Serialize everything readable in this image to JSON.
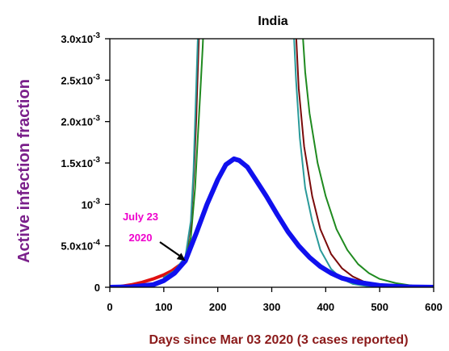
{
  "chart_data": {
    "type": "line",
    "title": "India",
    "xlabel": "Days since Mar 03 2020 (3 cases reported)",
    "ylabel": "Active infection fraction",
    "xlim": [
      0,
      600
    ],
    "ylim": [
      0,
      0.003
    ],
    "x_ticks": [
      {
        "value": 0,
        "label": "0"
      },
      {
        "value": 100,
        "label": "100"
      },
      {
        "value": 200,
        "label": "200"
      },
      {
        "value": 300,
        "label": "300"
      },
      {
        "value": 400,
        "label": "400"
      },
      {
        "value": 500,
        "label": "500"
      },
      {
        "value": 600,
        "label": "600"
      }
    ],
    "y_ticks": [
      {
        "value": 0,
        "label": "0"
      },
      {
        "value": 0.0005,
        "label": "5.0x10-4",
        "base": "5.0x10",
        "exp": "-4"
      },
      {
        "value": 0.001,
        "label": "10-3",
        "base": "10",
        "exp": "-3"
      },
      {
        "value": 0.0015,
        "label": "1.5x10-3",
        "base": "1.5x10",
        "exp": "-3"
      },
      {
        "value": 0.002,
        "label": "2.0x10-3",
        "base": "2.0x10",
        "exp": "-3"
      },
      {
        "value": 0.0025,
        "label": "2.5x10-3",
        "base": "2.5x10",
        "exp": "-3"
      },
      {
        "value": 0.003,
        "label": "3.0x10-3",
        "base": "3.0x10",
        "exp": "-3"
      }
    ],
    "grid": false,
    "series": [
      {
        "color": "#e01010",
        "width": 4,
        "values": [
          [
            0,
            0
          ],
          [
            20,
            1e-05
          ],
          [
            40,
            3e-05
          ],
          [
            60,
            6e-05
          ],
          [
            80,
            0.0001
          ],
          [
            100,
            0.00015
          ],
          [
            115,
            0.0002
          ],
          [
            130,
            0.00027
          ],
          [
            140,
            0.00032
          ]
        ]
      },
      {
        "color": "#1f8a1f",
        "width": 2,
        "values": [
          [
            100,
            0.00012
          ],
          [
            120,
            0.0002
          ],
          [
            140,
            0.00035
          ],
          [
            150,
            0.0006
          ],
          [
            158,
            0.0012
          ],
          [
            163,
            0.0018
          ],
          [
            168,
            0.0024
          ],
          [
            172,
            0.0029
          ],
          [
            174,
            0.0032
          ]
        ]
      },
      {
        "color": "#7a0a0a",
        "width": 2,
        "values": [
          [
            100,
            0.00012
          ],
          [
            120,
            0.0002
          ],
          [
            140,
            0.00035
          ],
          [
            150,
            0.00075
          ],
          [
            156,
            0.0014
          ],
          [
            160,
            0.002
          ],
          [
            163,
            0.0026
          ],
          [
            166,
            0.0032
          ]
        ]
      },
      {
        "color": "#2a9a9a",
        "width": 2,
        "values": [
          [
            100,
            0.00012
          ],
          [
            120,
            0.0002
          ],
          [
            140,
            0.00037
          ],
          [
            150,
            0.0008
          ],
          [
            155,
            0.0014
          ],
          [
            158,
            0.002
          ],
          [
            161,
            0.0026
          ],
          [
            164,
            0.0032
          ]
        ]
      },
      {
        "color": "#1f8a1f",
        "width": 2,
        "values": [
          [
            356,
            0.0032
          ],
          [
            362,
            0.0026
          ],
          [
            370,
            0.0021
          ],
          [
            385,
            0.0015
          ],
          [
            400,
            0.0011
          ],
          [
            420,
            0.0007
          ],
          [
            440,
            0.00045
          ],
          [
            460,
            0.00028
          ],
          [
            480,
            0.00017
          ],
          [
            500,
            0.0001
          ],
          [
            530,
            5e-05
          ],
          [
            560,
            2e-05
          ],
          [
            600,
            0
          ]
        ]
      },
      {
        "color": "#7a0a0a",
        "width": 2,
        "values": [
          [
            344,
            0.0032
          ],
          [
            350,
            0.0024
          ],
          [
            360,
            0.0017
          ],
          [
            375,
            0.0011
          ],
          [
            390,
            0.0007
          ],
          [
            410,
            0.0004
          ],
          [
            430,
            0.00023
          ],
          [
            450,
            0.00013
          ],
          [
            470,
            7e-05
          ],
          [
            500,
            3e-05
          ],
          [
            540,
            1e-05
          ],
          [
            600,
            0
          ]
        ]
      },
      {
        "color": "#2a9a9a",
        "width": 2,
        "values": [
          [
            340,
            0.0032
          ],
          [
            345,
            0.0025
          ],
          [
            352,
            0.0018
          ],
          [
            362,
            0.0012
          ],
          [
            375,
            0.0008
          ],
          [
            390,
            0.00045
          ],
          [
            410,
            0.00022
          ],
          [
            430,
            0.0001
          ],
          [
            450,
            4e-05
          ],
          [
            480,
            1e-05
          ],
          [
            520,
            0
          ],
          [
            600,
            0
          ]
        ]
      },
      {
        "color": "#1010ee",
        "width": 6,
        "values": [
          [
            0,
            0
          ],
          [
            40,
            5e-06
          ],
          [
            80,
            3e-05
          ],
          [
            100,
            8e-05
          ],
          [
            120,
            0.00017
          ],
          [
            140,
            0.00032
          ],
          [
            160,
            0.00065
          ],
          [
            180,
            0.001
          ],
          [
            200,
            0.0013
          ],
          [
            215,
            0.00148
          ],
          [
            230,
            0.00155
          ],
          [
            240,
            0.00153
          ],
          [
            255,
            0.00145
          ],
          [
            270,
            0.0013
          ],
          [
            290,
            0.0011
          ],
          [
            310,
            0.00088
          ],
          [
            330,
            0.00067
          ],
          [
            350,
            0.0005
          ],
          [
            370,
            0.00036
          ],
          [
            390,
            0.00025
          ],
          [
            410,
            0.00017
          ],
          [
            430,
            0.00011
          ],
          [
            460,
            6e-05
          ],
          [
            500,
            2e-05
          ],
          [
            550,
            5e-06
          ],
          [
            600,
            0
          ]
        ]
      }
    ],
    "annotation": {
      "line1": "July 23",
      "line2": "2020",
      "color": "#ee00cc",
      "x": 140,
      "y": 0.00032
    }
  }
}
